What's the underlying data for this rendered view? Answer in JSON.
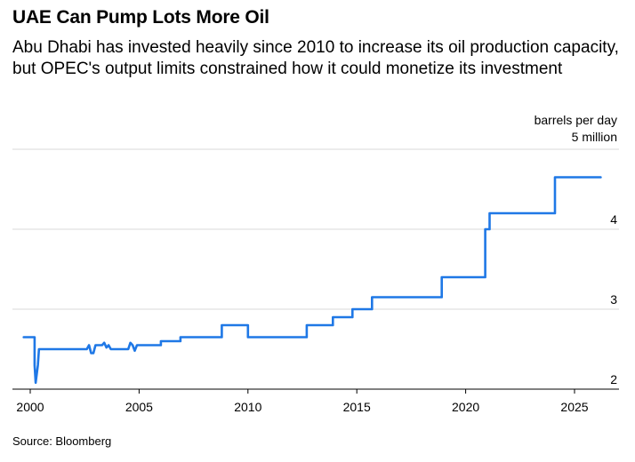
{
  "header": {
    "title": "UAE Can Pump Lots More Oil",
    "subtitle": "Abu Dhabi has invested heavily since 2010 to increase its oil production capacity, but OPEC's output limits constrained how it could monetize its investment"
  },
  "footer": {
    "source": "Source: Bloomberg"
  },
  "colors": {
    "line": "#1f78e6",
    "grid": "#d9d9d9",
    "axis": "#000000"
  },
  "chart_data": {
    "type": "line",
    "title": "UAE Can Pump Lots More Oil",
    "subtitle": "Abu Dhabi has invested heavily since 2010 to increase its oil production capacity, but OPEC's output limits constrained how it could monetize its investment",
    "ylabel": "barrels per day",
    "y_top_label": "5 million",
    "xlim": [
      1999.7,
      2026.8
    ],
    "ylim": [
      1.9,
      5.0
    ],
    "grid": true,
    "y_axis_side": "right",
    "x_ticks": [
      {
        "value": 2000,
        "label": "2000"
      },
      {
        "value": 2005,
        "label": "2005"
      },
      {
        "value": 2010,
        "label": "2010"
      },
      {
        "value": 2015,
        "label": "2015"
      },
      {
        "value": 2020,
        "label": "2020"
      },
      {
        "value": 2025,
        "label": "2025"
      }
    ],
    "y_ticks": [
      {
        "value": 2,
        "label": "2"
      },
      {
        "value": 3,
        "label": "3"
      },
      {
        "value": 4,
        "label": "4"
      },
      {
        "value": 5,
        "label": ""
      }
    ],
    "series": [
      {
        "x": [
          1999.7,
          2000.2,
          2000.2,
          2000.25,
          2000.35,
          2000.4,
          2000.4,
          2002.6,
          2002.7,
          2002.8,
          2002.9,
          2003.0,
          2003.2,
          2003.3,
          2003.4,
          2003.5,
          2003.6,
          2003.7,
          2004.0,
          2004.5,
          2004.6,
          2004.7,
          2004.8,
          2004.9,
          2005.0,
          2005.0,
          2006.0,
          2006.0,
          2006.9,
          2006.9,
          2008.8,
          2008.8,
          2010.0,
          2010.0,
          2012.7,
          2012.7,
          2013.9,
          2013.9,
          2014.8,
          2014.8,
          2015.7,
          2015.7,
          2018.9,
          2018.9,
          2020.9,
          2020.9,
          2021.1,
          2021.1,
          2021.2,
          2021.2,
          2024.1,
          2024.1,
          2026.2
        ],
        "y": [
          2.65,
          2.65,
          2.3,
          2.08,
          2.3,
          2.5,
          2.5,
          2.5,
          2.55,
          2.45,
          2.45,
          2.55,
          2.55,
          2.55,
          2.58,
          2.52,
          2.55,
          2.5,
          2.5,
          2.5,
          2.58,
          2.55,
          2.48,
          2.55,
          2.55,
          2.55,
          2.55,
          2.6,
          2.6,
          2.65,
          2.65,
          2.8,
          2.8,
          2.65,
          2.65,
          2.8,
          2.8,
          2.9,
          2.9,
          3.0,
          3.0,
          3.15,
          3.15,
          3.4,
          3.4,
          4.0,
          4.0,
          4.2,
          4.2,
          4.2,
          4.2,
          4.65,
          4.65
        ]
      }
    ]
  }
}
